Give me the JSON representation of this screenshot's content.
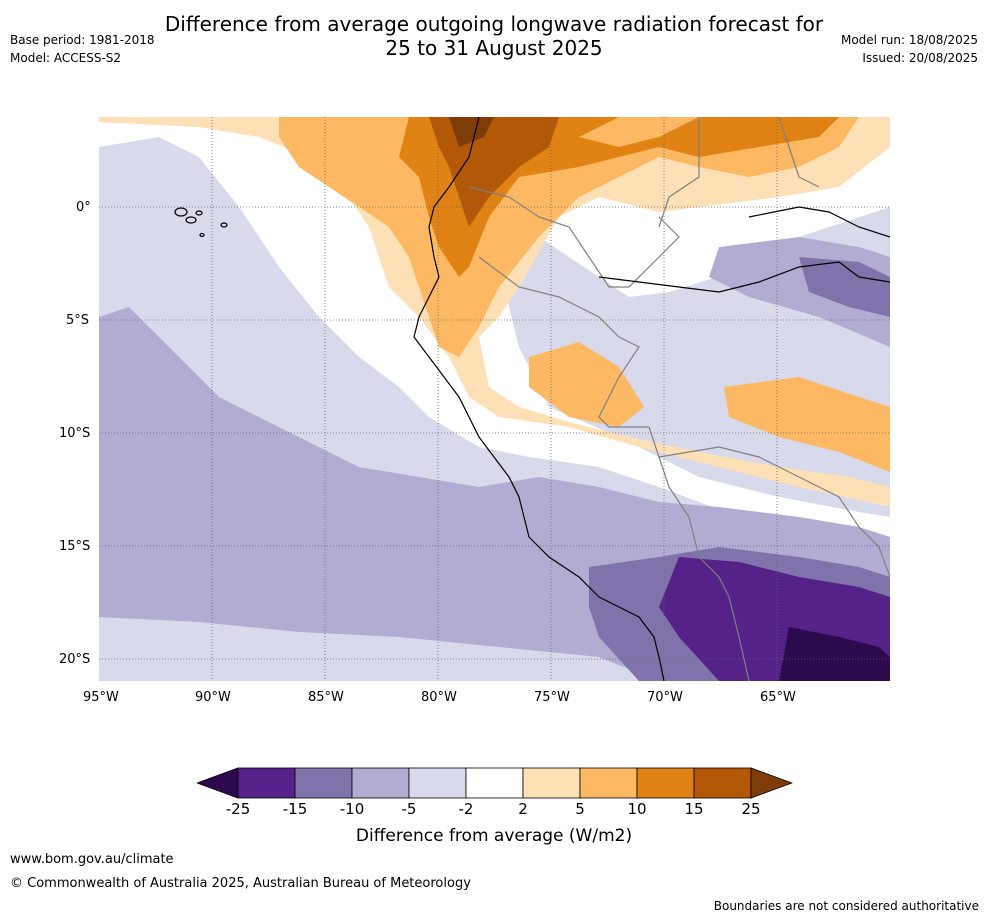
{
  "title_line1": "Difference from average outgoing longwave radiation forecast for",
  "title_line2": "25 to 31 August 2025",
  "meta_left": {
    "base_period": "Base period: 1981-2018",
    "model": "Model: ACCESS-S2"
  },
  "meta_right": {
    "model_run": "Model run: 18/08/2025",
    "issued": "Issued: 20/08/2025"
  },
  "lat_labels": [
    "0°",
    "5°S",
    "10°S",
    "15°S",
    "20°S"
  ],
  "lon_labels": [
    "95°W",
    "90°W",
    "85°W",
    "80°W",
    "75°W",
    "70°W",
    "65°W"
  ],
  "colorbar": {
    "title": "Difference from average (W/m2)",
    "ticks": [
      "-25",
      "-15",
      "-10",
      "-5",
      "-2",
      "2",
      "5",
      "10",
      "15",
      "25"
    ],
    "colors": [
      "#2d0a4e",
      "#542288",
      "#8073ac",
      "#b2abd2",
      "#d8daeb",
      "#ffffff",
      "#fee0b6",
      "#fdb863",
      "#e08214",
      "#b35806",
      "#7f3b08"
    ]
  },
  "footer": {
    "url": "www.bom.gov.au/climate",
    "copyright": "© Commonwealth of Australia 2025, Australian Bureau of Meteorology",
    "disclaimer": "Boundaries are not considered authoritative"
  }
}
